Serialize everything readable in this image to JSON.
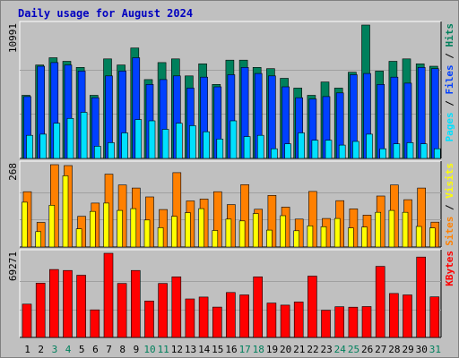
{
  "title": "Daily usage for August 2024",
  "colors": {
    "background": "#c0c0c0",
    "plot": "#c0c0c0",
    "grid": "#a0a0a0",
    "hits": "#00805c",
    "files": "#0040ff",
    "pages": "#00e0ff",
    "visits": "#ffff00",
    "sites": "#ff8000",
    "kbytes": "#ff0000",
    "weekend_day": "#00805c",
    "weekday_day": "#000000",
    "title": "#0000c0"
  },
  "legend": {
    "top": [
      {
        "text": "Pages",
        "color": "#00e0ff"
      },
      {
        "text": " / ",
        "color": "#000000"
      },
      {
        "text": "Files",
        "color": "#0040ff"
      },
      {
        "text": " / ",
        "color": "#000000"
      },
      {
        "text": "Hits",
        "color": "#00805c"
      }
    ],
    "middle": [
      {
        "text": "Sites",
        "color": "#ff8000"
      },
      {
        "text": " / ",
        "color": "#000000"
      },
      {
        "text": "Visits",
        "color": "#ffff00"
      }
    ],
    "bottom": [
      {
        "text": "KBytes",
        "color": "#ff0000"
      }
    ]
  },
  "chart_data": {
    "type": "bar",
    "days": [
      "1",
      "2",
      "3",
      "4",
      "5",
      "6",
      "7",
      "8",
      "9",
      "10",
      "11",
      "12",
      "13",
      "14",
      "15",
      "16",
      "17",
      "18",
      "19",
      "20",
      "21",
      "22",
      "23",
      "24",
      "25",
      "26",
      "27",
      "28",
      "29",
      "30",
      "31"
    ],
    "weekend_days": [
      "3",
      "4",
      "10",
      "11",
      "17",
      "18",
      "24",
      "25",
      "31"
    ],
    "panels": [
      {
        "name": "hits-files-pages",
        "axis_max_label": "10991",
        "ymax": 10991,
        "series": [
          {
            "name": "Hits",
            "values": [
              5200,
              7700,
              8300,
              8000,
              7500,
              5200,
              8200,
              7700,
              9100,
              6500,
              7900,
              8200,
              6800,
              7800,
              6100,
              8100,
              8100,
              7500,
              7400,
              6600,
              5800,
              5200,
              6300,
              5800,
              7100,
              10991,
              7200,
              8000,
              8200,
              7800,
              7600
            ]
          },
          {
            "name": "Files",
            "values": [
              5100,
              7600,
              7900,
              7700,
              7200,
              5000,
              6800,
              7200,
              8300,
              6100,
              6500,
              6800,
              5800,
              6700,
              5900,
              6900,
              7500,
              7000,
              6800,
              5900,
              5000,
              4900,
              5100,
              5400,
              6900,
              7000,
              6100,
              6700,
              6200,
              7500,
              7400
            ]
          },
          {
            "name": "Pages",
            "values": [
              1900,
              2000,
              2900,
              3300,
              3800,
              1000,
              1300,
              2100,
              3200,
              3100,
              2400,
              2900,
              2700,
              2200,
              1600,
              3100,
              1800,
              1900,
              800,
              1200,
              2100,
              1500,
              1500,
              1100,
              1400,
              2000,
              800,
              1200,
              1300,
              1200,
              800
            ]
          }
        ]
      },
      {
        "name": "sites-visits",
        "axis_max_label": "268",
        "ymax": 268,
        "series": [
          {
            "name": "Sites",
            "values": [
              180,
              80,
              268,
              265,
              100,
              143,
              237,
              202,
              192,
              163,
              122,
              242,
              150,
              156,
              180,
              138,
              203,
              123,
              168,
              130,
              91,
              181,
              93,
              151,
              124,
              104,
              166,
              202,
              154,
              192,
              81
            ]
          },
          {
            "name": "Visits",
            "values": [
              146,
              50,
              136,
              232,
              59,
              116,
              143,
              119,
              125,
              88,
              63,
              100,
              112,
              125,
              54,
              91,
              85,
              109,
              55,
              102,
              53,
              69,
              66,
              93,
              62,
              65,
              113,
              119,
              113,
              67,
              62
            ]
          }
        ]
      },
      {
        "name": "kbytes",
        "axis_max_label": "69271",
        "ymax": 69271,
        "series": [
          {
            "name": "KBytes",
            "values": [
              27400,
              44700,
              55900,
              55100,
              51200,
              22700,
              69271,
              44400,
              55100,
              30000,
              44400,
              49900,
              31700,
              33200,
              25000,
              37000,
              35000,
              49900,
              28300,
              26600,
              29200,
              50500,
              22400,
              25300,
              24900,
              25400,
              58500,
              36200,
              35000,
              66200,
              33400
            ]
          }
        ]
      }
    ]
  }
}
